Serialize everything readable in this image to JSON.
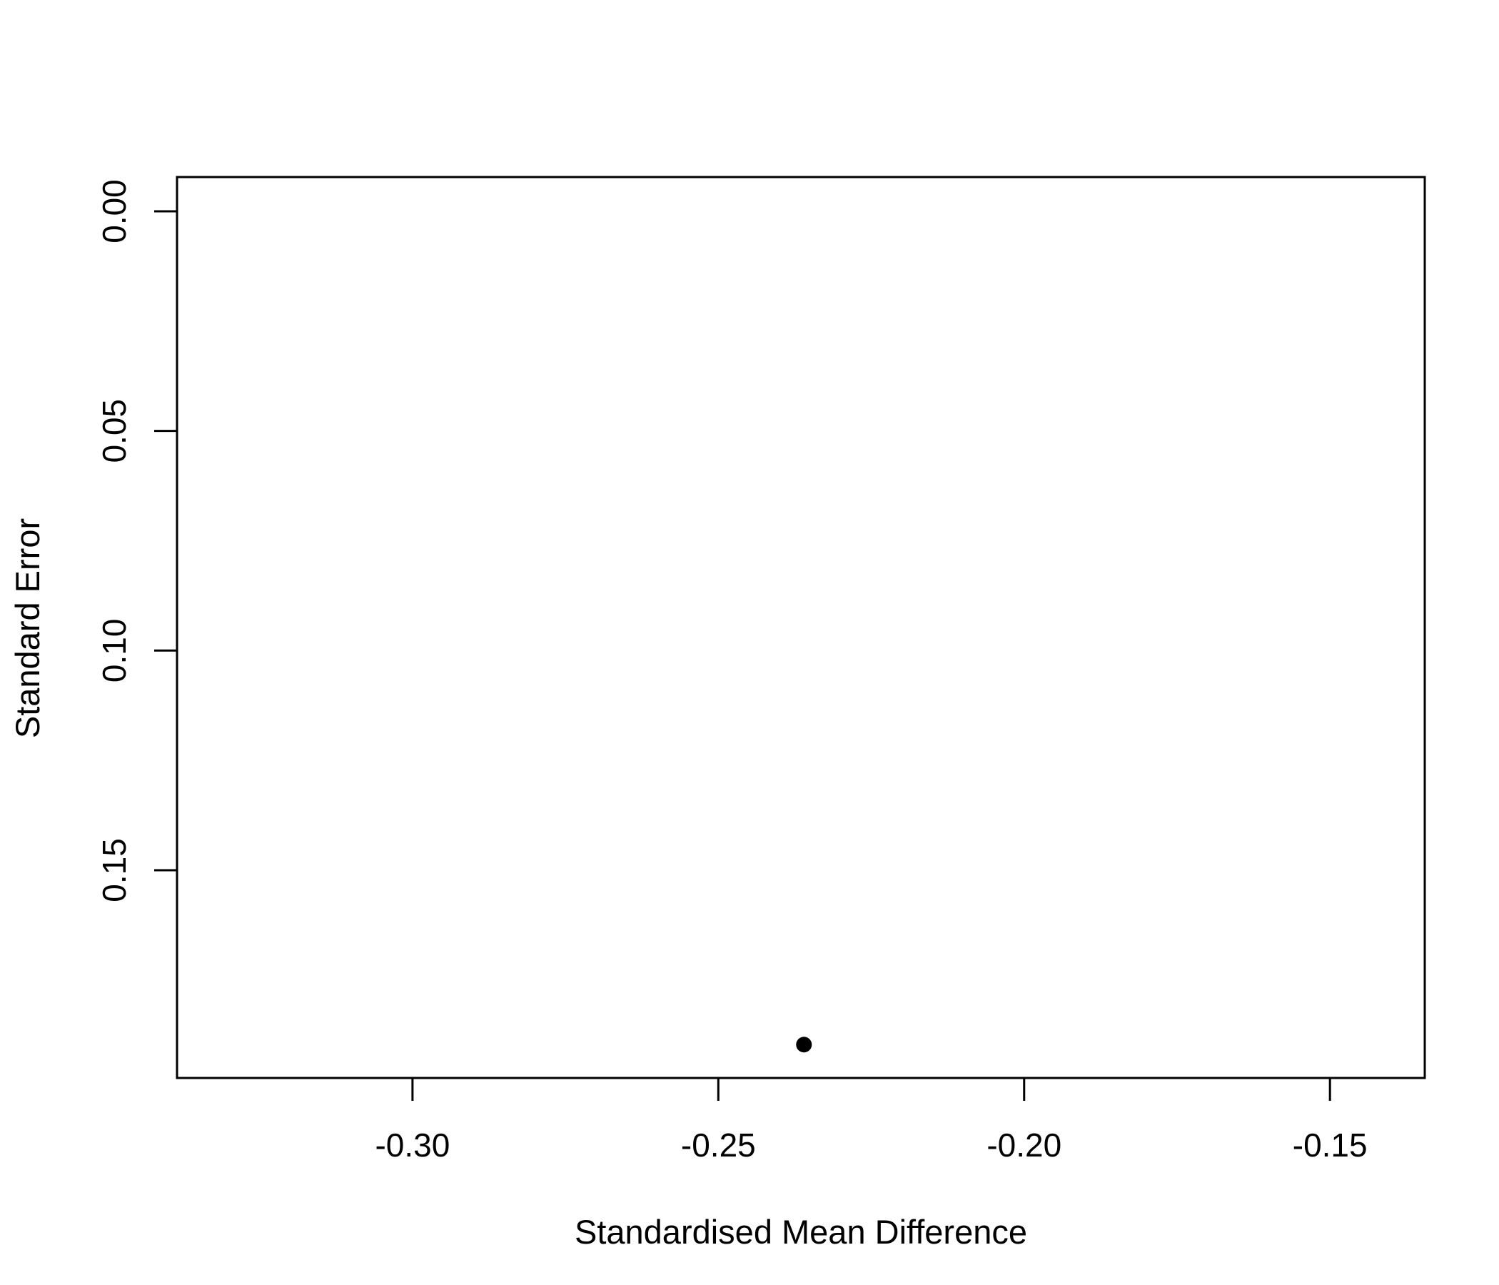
{
  "chart_data": {
    "type": "scatter",
    "title": "",
    "xlabel": "Standardised Mean Difference",
    "ylabel": "Standard Error",
    "x_ticks": [
      -0.3,
      -0.25,
      -0.2,
      -0.15
    ],
    "x_tick_labels": [
      "-0.30",
      "-0.25",
      "-0.20",
      "-0.15"
    ],
    "y_ticks": [
      0.0,
      0.05,
      0.1,
      0.15
    ],
    "y_tick_labels": [
      "0.00",
      "0.05",
      "0.10",
      "0.15"
    ],
    "xlim": [
      -0.3385,
      -0.1345
    ],
    "ylim": [
      0.1973,
      -0.0078
    ],
    "y_axis_reversed": true,
    "grid": false,
    "points": [
      {
        "x": -0.236,
        "y": 0.1897
      }
    ],
    "point_color": "#000000"
  }
}
